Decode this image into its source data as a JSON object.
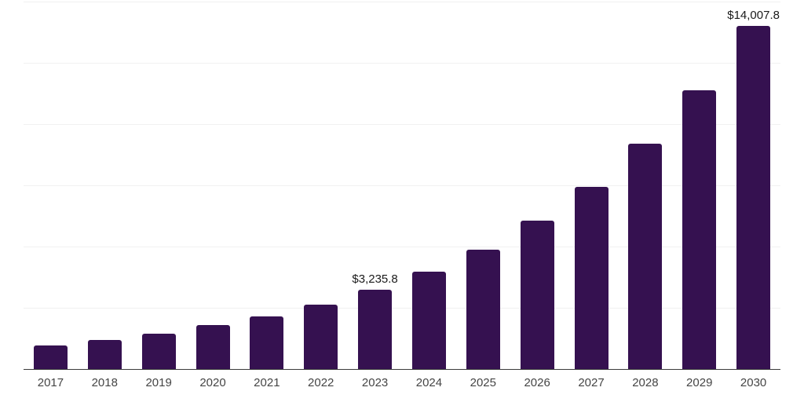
{
  "chart_data": {
    "type": "bar",
    "title": "",
    "xlabel": "",
    "ylabel": "",
    "categories": [
      "2017",
      "2018",
      "2019",
      "2020",
      "2021",
      "2022",
      "2023",
      "2024",
      "2025",
      "2026",
      "2027",
      "2028",
      "2029",
      "2030"
    ],
    "values": [
      960,
      1190,
      1450,
      1790,
      2150,
      2620,
      3235.8,
      3990,
      4880,
      6050,
      7450,
      9190,
      11390,
      14007.8
    ],
    "data_labels": [
      "",
      "",
      "",
      "",
      "",
      "",
      "$3,235.8",
      "",
      "",
      "",
      "",
      "",
      "",
      "$14,007.8"
    ],
    "ylim": [
      0,
      15000
    ],
    "gridline_interval": 2500,
    "grid": "horizontal",
    "legend_position": "none",
    "y_tick_labels_shown": false,
    "labeled_points": [
      {
        "category": "2023",
        "label": "$3,235.8",
        "value": 3235.8
      },
      {
        "category": "2030",
        "label": "$14,007.8",
        "value": 14007.8
      }
    ]
  },
  "colors": {
    "bar": "#351150",
    "gridline": "#f1f1f1",
    "axis_line": "#3c3c3c",
    "value_label_text": "#1a1a1a",
    "tick_label_text": "#454545",
    "background": "#ffffff"
  }
}
